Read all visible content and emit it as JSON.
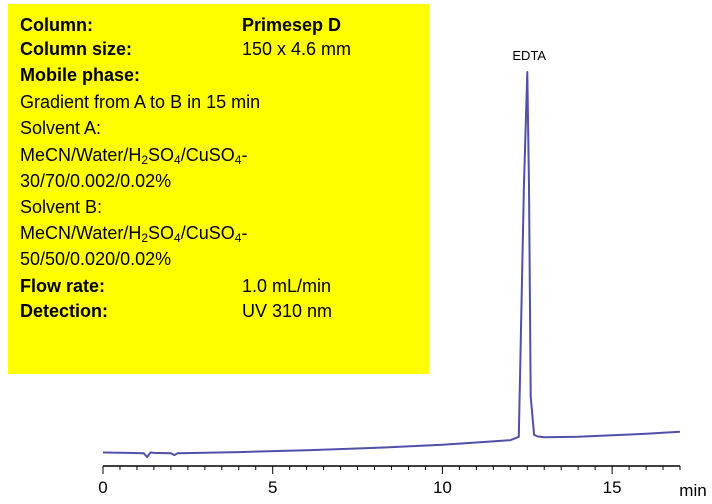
{
  "info": {
    "column_label": "Column:",
    "column_value": "Primesep D",
    "column_size_label": "Column size:",
    "column_size_value": "150 x  4.6 mm",
    "mobile_phase_label": "Mobile phase:",
    "gradient": "Gradient from A to B in 15 min",
    "solvent_a_label": "Solvent A:",
    "solvent_a_formula": [
      "MeCN/Water/H",
      "2",
      "SO",
      "4",
      "/CuSO",
      "4",
      "-"
    ],
    "solvent_a_ratio": "30/70/0.002/0.02%",
    "solvent_b_label": "Solvent B:",
    "solvent_b_formula": [
      "MeCN/Water/H",
      "2",
      "SO",
      "4",
      "/CuSO",
      "4",
      "-"
    ],
    "solvent_b_ratio": "50/50/0.020/0.02%",
    "flow_rate_label": "Flow rate:",
    "flow_rate_value": "1.0 mL/min",
    "detection_label": "Detection:",
    "detection_value": "UV 310 nm"
  },
  "chart_data": {
    "type": "line",
    "x_unit_label": "min",
    "xlim": [
      0,
      17
    ],
    "x_ticks": [
      0,
      5,
      10,
      15
    ],
    "ylim": [
      0,
      100
    ],
    "series_color": "#5050aa",
    "x": [
      0,
      1.2,
      1.3,
      1.4,
      1.5,
      2.0,
      2.1,
      2.2,
      4,
      6,
      8,
      10,
      11,
      12,
      12.25,
      12.4,
      12.5,
      12.55,
      12.6,
      12.7,
      12.8,
      13,
      14,
      15,
      16,
      17
    ],
    "y": [
      0.4,
      0.2,
      -0.8,
      0.4,
      0.3,
      0.2,
      -0.3,
      0.2,
      0.5,
      1.0,
      1.6,
      2.4,
      3.0,
      3.6,
      4.5,
      70,
      100,
      70,
      15,
      5,
      4.6,
      4.4,
      4.5,
      4.9,
      5.3,
      5.8
    ],
    "peaks": [
      {
        "name": "EDTA",
        "x": 12.5
      }
    ]
  }
}
